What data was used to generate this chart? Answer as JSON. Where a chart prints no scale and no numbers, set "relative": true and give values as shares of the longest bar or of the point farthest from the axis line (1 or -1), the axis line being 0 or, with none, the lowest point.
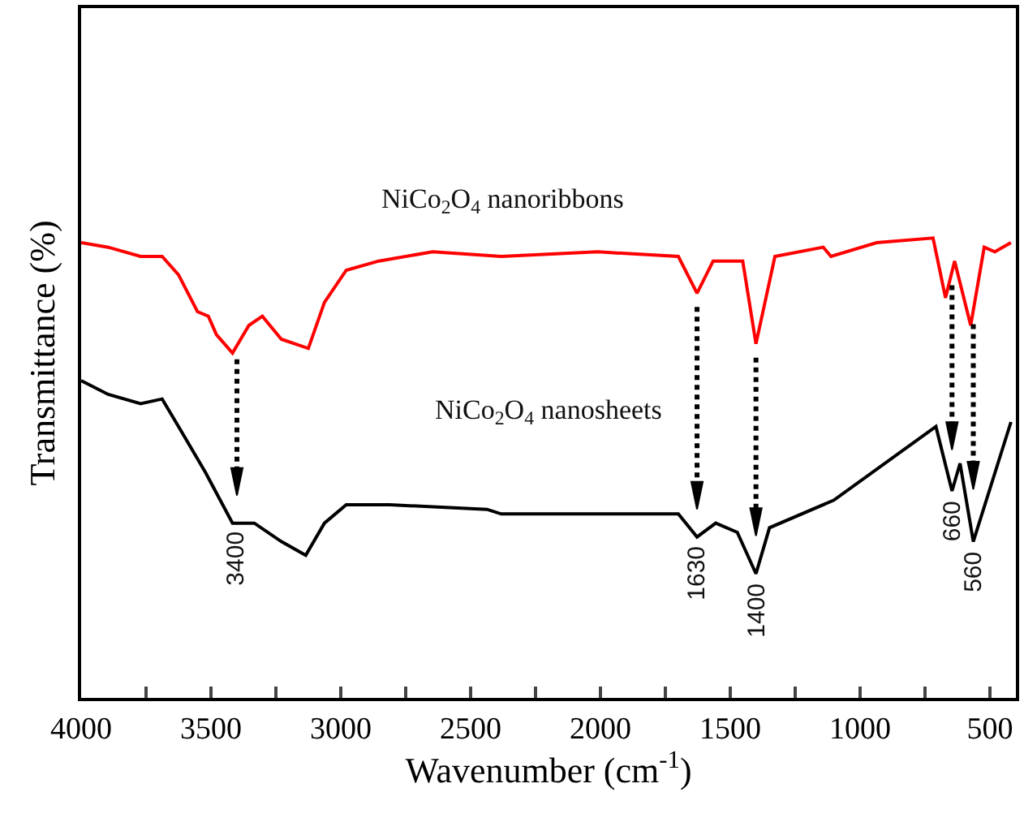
{
  "chart_data": {
    "type": "line",
    "relative": true,
    "xlabel": "Wavenumber (cm$^{-1}$)",
    "ylabel": "Transmittance (%)",
    "xlim": [
      4000,
      400
    ],
    "xticks": [
      4000,
      {
        "value": 3750,
        "label": null
      },
      3500,
      {
        "value": 3250,
        "label": null
      },
      3000,
      {
        "value": 2750,
        "label": null
      },
      2500,
      {
        "value": 2250,
        "label": null
      },
      2000,
      {
        "value": 1750,
        "label": null
      },
      1500,
      {
        "value": 1250,
        "label": null
      },
      1000,
      {
        "value": 750,
        "label": null
      },
      500
    ],
    "tick_labels": "x",
    "legend": false,
    "marker": "none",
    "line_style": "solid",
    "series": [
      {
        "name": "NiCo$_{2}$O$_{4}$ nanoribbons",
        "color": "#ff0000",
        "x": [
          4000,
          3896,
          3771,
          3688,
          3625,
          3552,
          3510,
          3479,
          3417,
          3354,
          3302,
          3229,
          3125,
          3063,
          2979,
          2854,
          2646,
          2382,
          2010,
          1700,
          1628,
          1566,
          1452,
          1401,
          1328,
          1142,
          1112,
          936,
          719,
          671,
          636,
          574,
          522,
          481,
          419
        ],
        "values": [
          0.99,
          0.98,
          0.96,
          0.96,
          0.92,
          0.84,
          0.83,
          0.79,
          0.75,
          0.81,
          0.83,
          0.78,
          0.76,
          0.86,
          0.93,
          0.95,
          0.97,
          0.96,
          0.97,
          0.96,
          0.88,
          0.95,
          0.95,
          0.77,
          0.96,
          0.98,
          0.96,
          0.99,
          1.0,
          0.87,
          0.95,
          0.81,
          0.98,
          0.97,
          0.99
        ]
      },
      {
        "name": "NiCo$_{2}$O$_{4}$ nanosheets",
        "color": "#000000",
        "x": [
          4000,
          3896,
          3771,
          3688,
          3604,
          3521,
          3417,
          3333,
          3229,
          3135,
          3063,
          2979,
          2812,
          2437,
          2382,
          2010,
          1700,
          1628,
          1556,
          1473,
          1401,
          1349,
          1101,
          708,
          646,
          615,
          564,
          419
        ],
        "values": [
          0.69,
          0.66,
          0.64,
          0.65,
          0.57,
          0.49,
          0.38,
          0.38,
          0.34,
          0.31,
          0.38,
          0.42,
          0.42,
          0.41,
          0.4,
          0.4,
          0.4,
          0.35,
          0.38,
          0.36,
          0.27,
          0.37,
          0.43,
          0.59,
          0.45,
          0.51,
          0.34,
          0.6
        ]
      }
    ],
    "annotations": [
      {
        "text": "3400",
        "x": 3400,
        "y": 0.38
      },
      {
        "text": "1630",
        "x": 1628,
        "y": 0.35
      },
      {
        "text": "1400",
        "x": 1401,
        "y": 0.27
      },
      {
        "text": "660",
        "x": 646,
        "y": 0.45
      },
      {
        "text": "560",
        "x": 564,
        "y": 0.34
      }
    ]
  }
}
